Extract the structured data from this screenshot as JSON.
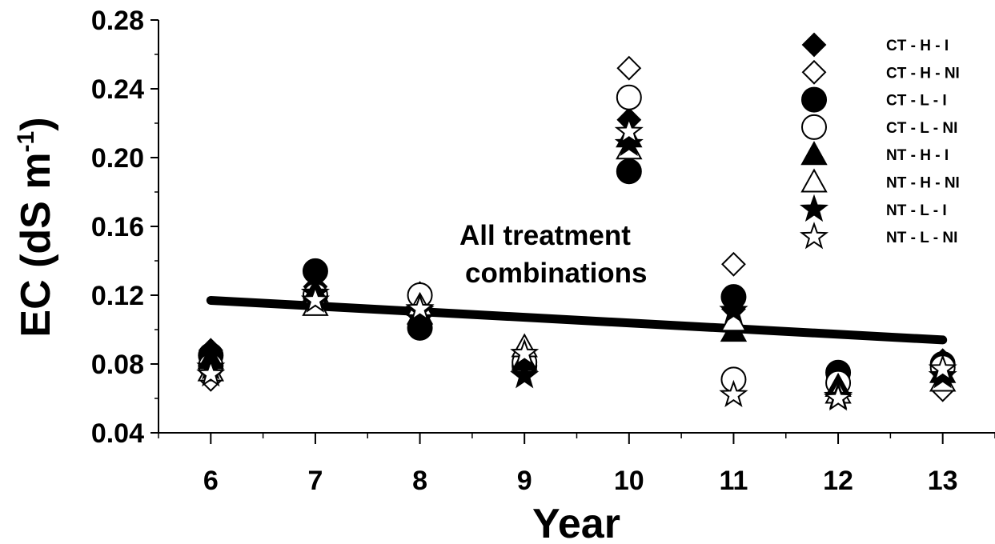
{
  "chart_data": {
    "type": "scatter",
    "title": "",
    "xlabel": "Year",
    "ylabel_main": "EC (dS m",
    "ylabel_sup": "-1",
    "ylabel_close": ")",
    "xlim": [
      5.5,
      13.5
    ],
    "ylim": [
      0.04,
      0.28
    ],
    "x_ticks": [
      6,
      7,
      8,
      9,
      10,
      11,
      12,
      13
    ],
    "x_tick_labels": [
      "6",
      "7",
      "8",
      "9",
      "10",
      "11",
      "12",
      "13"
    ],
    "y_ticks": [
      0.04,
      0.08,
      0.12,
      0.16,
      0.2,
      0.24,
      0.28
    ],
    "y_tick_labels": [
      "0.04",
      "0.08",
      "0.12",
      "0.16",
      "0.20",
      "0.24",
      "0.28"
    ],
    "legend_position": "top-right",
    "series": [
      {
        "name": "CT - H - I",
        "marker": "diamond",
        "filled": true,
        "x": [
          6,
          7,
          8,
          9,
          10,
          11,
          12,
          13
        ],
        "y": [
          0.088,
          0.125,
          0.108,
          0.083,
          0.222,
          0.112,
          0.072,
          0.082
        ]
      },
      {
        "name": "CT - H - NI",
        "marker": "diamond",
        "filled": false,
        "x": [
          6,
          7,
          8,
          9,
          10,
          11,
          12,
          13
        ],
        "y": [
          0.071,
          0.118,
          0.121,
          0.082,
          0.252,
          0.138,
          0.069,
          0.065
        ]
      },
      {
        "name": "CT - L - I",
        "marker": "circle",
        "filled": true,
        "x": [
          6,
          7,
          8,
          9,
          10,
          11,
          12,
          13
        ],
        "y": [
          0.085,
          0.134,
          0.101,
          0.079,
          0.192,
          0.119,
          0.075,
          0.08
        ]
      },
      {
        "name": "CT - L - NI",
        "marker": "circle",
        "filled": false,
        "x": [
          6,
          7,
          8,
          9,
          10,
          11,
          12,
          13
        ],
        "y": [
          0.079,
          0.12,
          0.12,
          0.081,
          0.235,
          0.071,
          0.069,
          0.078
        ]
      },
      {
        "name": "NT - H - I",
        "marker": "triangle",
        "filled": true,
        "x": [
          6,
          7,
          8,
          9,
          10,
          11,
          12,
          13
        ],
        "y": [
          0.083,
          0.122,
          0.109,
          0.082,
          0.212,
          0.099,
          0.067,
          0.075
        ]
      },
      {
        "name": "NT - H - NI",
        "marker": "triangle",
        "filled": false,
        "x": [
          6,
          7,
          8,
          9,
          10,
          11,
          12,
          13
        ],
        "y": [
          0.076,
          0.114,
          0.114,
          0.09,
          0.205,
          0.105,
          0.063,
          0.07
        ]
      },
      {
        "name": "NT - L - I",
        "marker": "star",
        "filled": true,
        "x": [
          6,
          7,
          8,
          9,
          10,
          11,
          12,
          13
        ],
        "y": [
          0.078,
          0.121,
          0.111,
          0.073,
          0.208,
          0.111,
          0.061,
          0.073
        ]
      },
      {
        "name": "NT - L - NI",
        "marker": "star",
        "filled": false,
        "x": [
          6,
          7,
          8,
          9,
          10,
          11,
          12,
          13
        ],
        "y": [
          0.074,
          0.117,
          0.112,
          0.086,
          0.215,
          0.062,
          0.06,
          0.077
        ]
      }
    ],
    "trendline": {
      "x": [
        6,
        13
      ],
      "y": [
        0.117,
        0.094
      ]
    },
    "annotation_lines": [
      "All treatment",
      "combinations"
    ]
  }
}
